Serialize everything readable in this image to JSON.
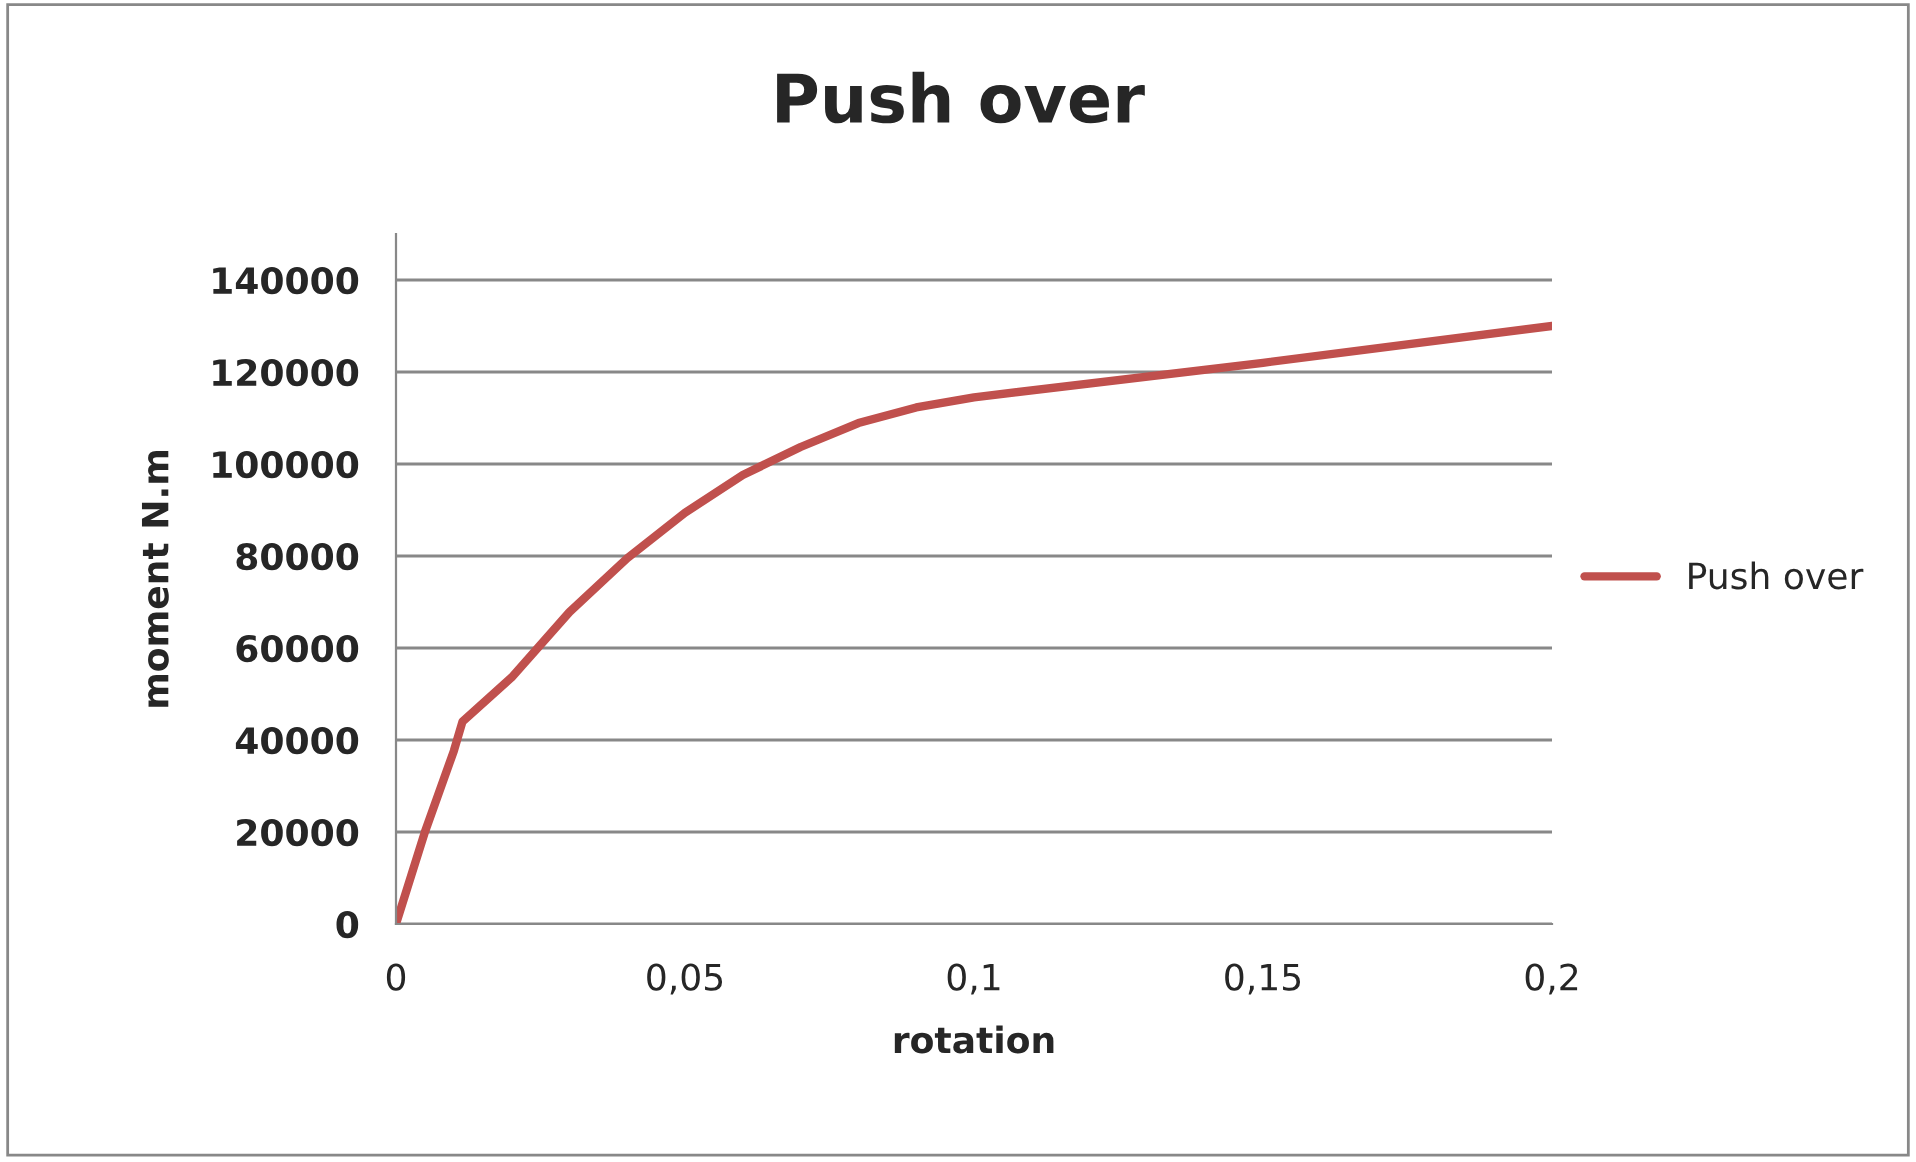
{
  "chart_data": {
    "type": "line",
    "title": "Push over",
    "xlabel": "rotation",
    "ylabel": "moment N.m",
    "x": [
      0,
      0.005,
      0.01,
      0.0115,
      0.02,
      0.03,
      0.04,
      0.05,
      0.06,
      0.07,
      0.08,
      0.09,
      0.1,
      0.15,
      0.2
    ],
    "series": [
      {
        "name": "Push over",
        "color": "#c0504d",
        "values": [
          0,
          20000,
          37600,
          44000,
          53600,
          67800,
          79500,
          89400,
          97600,
          103700,
          108900,
          112300,
          114500,
          122000,
          130000
        ]
      }
    ],
    "xlim": [
      0,
      0.2
    ],
    "xticks": [
      {
        "value": 0,
        "label": "0"
      },
      {
        "value": 0.05,
        "label": "0,05"
      },
      {
        "value": 0.1,
        "label": "0,1"
      },
      {
        "value": 0.15,
        "label": "0,15"
      },
      {
        "value": 0.2,
        "label": "0,2"
      }
    ],
    "ylim": [
      0,
      150000
    ],
    "yticks": [
      0,
      20000,
      40000,
      60000,
      80000,
      100000,
      120000,
      140000
    ],
    "grid": "y",
    "legend": "right",
    "marker": "none",
    "line_style": "solid"
  }
}
